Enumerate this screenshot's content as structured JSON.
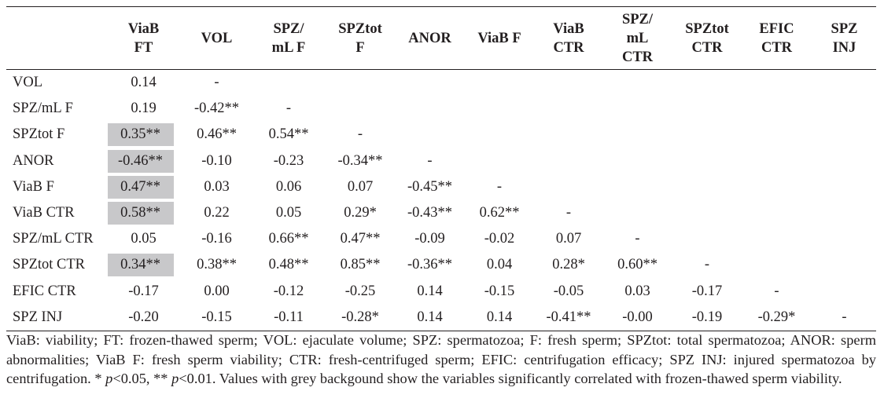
{
  "table": {
    "columns": [
      [
        "ViaB",
        "FT"
      ],
      [
        "VOL"
      ],
      [
        "SPZ/",
        "mL F"
      ],
      [
        "SPZtot",
        "F"
      ],
      [
        "ANOR"
      ],
      [
        "ViaB F"
      ],
      [
        "ViaB",
        "CTR"
      ],
      [
        "SPZ/",
        "mL",
        "CTR"
      ],
      [
        "SPZtot",
        "CTR"
      ],
      [
        "EFIC",
        "CTR"
      ],
      [
        "SPZ",
        "INJ"
      ]
    ],
    "rows": [
      {
        "label": "VOL",
        "cells": [
          "0.14",
          "-",
          "",
          "",
          "",
          "",
          "",
          "",
          "",
          "",
          ""
        ]
      },
      {
        "label": "SPZ/mL F",
        "cells": [
          "0.19",
          "-0.42**",
          "-",
          "",
          "",
          "",
          "",
          "",
          "",
          "",
          ""
        ]
      },
      {
        "label": "SPZtot F",
        "cells": [
          "0.35**",
          "0.46**",
          "0.54**",
          "-",
          "",
          "",
          "",
          "",
          "",
          "",
          ""
        ]
      },
      {
        "label": "ANOR",
        "cells": [
          "-0.46**",
          "-0.10",
          "-0.23",
          "-0.34**",
          "-",
          "",
          "",
          "",
          "",
          "",
          ""
        ]
      },
      {
        "label": "ViaB F",
        "cells": [
          "0.47**",
          "0.03",
          "0.06",
          "0.07",
          "-0.45**",
          "-",
          "",
          "",
          "",
          "",
          ""
        ]
      },
      {
        "label": "ViaB CTR",
        "cells": [
          "0.58**",
          "0.22",
          "0.05",
          "0.29*",
          "-0.43**",
          "0.62**",
          "-",
          "",
          "",
          "",
          ""
        ]
      },
      {
        "label": "SPZ/mL CTR",
        "cells": [
          "0.05",
          "-0.16",
          "0.66**",
          "0.47**",
          "-0.09",
          "-0.02",
          "0.07",
          "-",
          "",
          "",
          ""
        ]
      },
      {
        "label": "SPZtot CTR",
        "cells": [
          "0.34**",
          "0.38**",
          "0.48**",
          "0.85**",
          "-0.36**",
          "0.04",
          "0.28*",
          "0.60**",
          "-",
          "",
          ""
        ]
      },
      {
        "label": "EFIC CTR",
        "cells": [
          "-0.17",
          "0.00",
          "-0.12",
          "-0.25",
          "0.14",
          "-0.15",
          "-0.05",
          "0.03",
          "-0.17",
          "-",
          ""
        ]
      },
      {
        "label": "SPZ INJ",
        "cells": [
          "-0.20",
          "-0.15",
          "-0.11",
          "-0.28*",
          "0.14",
          "0.14",
          "-0.41**",
          "-0.00",
          "-0.19",
          "-0.29*",
          "-"
        ]
      }
    ],
    "highlighted_rows": [
      2,
      3,
      4,
      5,
      7
    ],
    "highlight_color": "#c8c8ca"
  },
  "footnote": {
    "part1": "ViaB: viability; FT: frozen-thawed sperm; VOL: ejaculate volume; SPZ: spermatozoa; F: fresh sperm; SPZtot: total spermatozoa; ANOR: sperm abnormalities; ViaB F: fresh sperm viability; CTR: fresh-centrifuged sperm; EFIC: centrifugation efficacy; SPZ INJ: injured spermatozoa by centrifugation. * ",
    "p1": "p",
    "part2": "<0.05, ** ",
    "p2": "p",
    "part3": "<0.01. Values with grey backgound show the variables significantly correlated with frozen-thawed sperm viability."
  }
}
